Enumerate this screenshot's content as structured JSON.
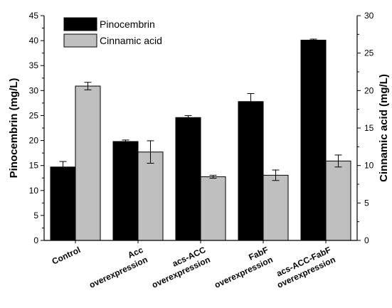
{
  "chart_data": {
    "type": "bar",
    "categories": [
      [
        "Control"
      ],
      [
        "Acc",
        "overexpression"
      ],
      [
        "acs-ACC",
        "overexpression"
      ],
      [
        "FabF",
        "overexpression"
      ],
      [
        "acs-ACC-FabF",
        "overexpression"
      ]
    ],
    "series": [
      {
        "name": "Pinocembrin",
        "axis": "left",
        "color": "#000000",
        "values": [
          14.7,
          19.8,
          24.6,
          27.8,
          40.1
        ],
        "errors": [
          1.1,
          0.3,
          0.4,
          1.6,
          0.2
        ]
      },
      {
        "name": "Cinnamic acid",
        "axis": "right",
        "color": "#bfbfbf",
        "values": [
          20.6,
          11.8,
          8.5,
          8.7,
          10.6
        ],
        "errors": [
          0.5,
          1.5,
          0.2,
          0.7,
          0.8
        ]
      }
    ],
    "ylabel": "Pinocembrin (mg/L)",
    "ylim": [
      0,
      45
    ],
    "yticks": [
      "0",
      "5",
      "10",
      "15",
      "20",
      "25",
      "30",
      "35",
      "40",
      "45"
    ],
    "y2label": "Cinnamic acid (mg/L)",
    "y2lim": [
      0,
      30
    ],
    "y2ticks": [
      "0",
      "5",
      "10",
      "15",
      "20",
      "25",
      "30"
    ],
    "legend": "top-left",
    "grid": false
  }
}
